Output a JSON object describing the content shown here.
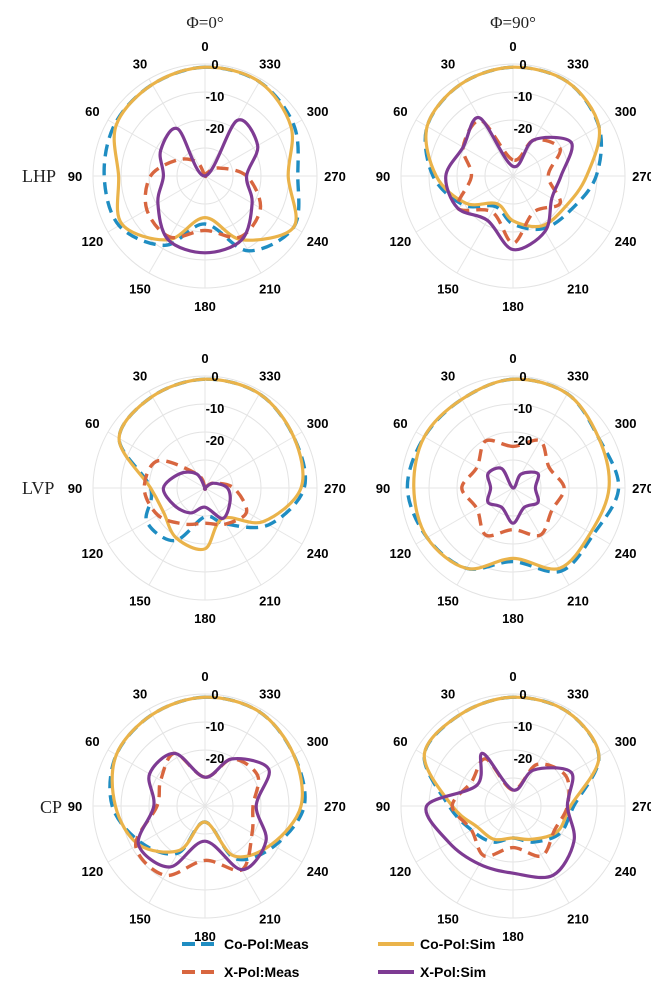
{
  "column_titles": [
    "Φ=0°",
    "Φ=90°"
  ],
  "row_labels": [
    "LHP",
    "LVP",
    "CP"
  ],
  "legend": [
    {
      "label": "Co-Pol:Meas",
      "color": "#1f8dc2",
      "dashed": true
    },
    {
      "label": "Co-Pol:Sim",
      "color": "#eab34a",
      "dashed": false
    },
    {
      "label": "X-Pol:Meas",
      "color": "#d8663f",
      "dashed": true
    },
    {
      "label": "X-Pol:Sim",
      "color": "#7e3b93",
      "dashed": false
    }
  ],
  "chart_data": [
    {
      "type": "polar",
      "row": "LHP",
      "column": "Φ=0°",
      "angle_ticks": [
        "0",
        "30",
        "60",
        "90",
        "120",
        "150",
        "180",
        "210",
        "240",
        "270",
        "300",
        "330"
      ],
      "r_ticks": [
        "0",
        "-10",
        "-20"
      ],
      "r_range_db": [
        -35,
        0
      ],
      "angle_direction": "clockwise-negative",
      "series": [
        {
          "name": "Co-Pol:Meas",
          "angles_deg": [
            0,
            30,
            60,
            90,
            120,
            150,
            180,
            210,
            240,
            270,
            300,
            330,
            360
          ],
          "values_db": [
            -1,
            -2,
            -2.5,
            -3.5,
            -4,
            -10,
            -20,
            -8,
            -3,
            -6,
            -3,
            -1,
            -1
          ]
        },
        {
          "name": "Co-Pol:Sim",
          "angles_deg": [
            0,
            30,
            60,
            90,
            120,
            150,
            180,
            210,
            240,
            270,
            300,
            330,
            360
          ],
          "values_db": [
            -1,
            -2,
            -3,
            -8,
            -5,
            -12,
            -22,
            -12,
            -3,
            -9,
            -4,
            -1,
            -1
          ]
        },
        {
          "name": "X-Pol:Meas",
          "angles_deg": [
            0,
            30,
            60,
            90,
            120,
            150,
            180,
            210,
            240,
            270,
            300,
            330,
            360
          ],
          "values_db": [
            -35,
            -30,
            -25,
            -18,
            -14,
            -13,
            -18,
            -13,
            -15,
            -22,
            -30,
            -34,
            -35
          ]
        },
        {
          "name": "X-Pol:Sim",
          "angles_deg": [
            0,
            30,
            60,
            90,
            120,
            150,
            180,
            210,
            240,
            270,
            300,
            330,
            360
          ],
          "values_db": [
            -35,
            -18,
            -19,
            -22,
            -18,
            -12,
            -11,
            -12,
            -18,
            -22,
            -16,
            -15,
            -35
          ]
        }
      ]
    },
    {
      "type": "polar",
      "row": "LHP",
      "column": "Φ=90°",
      "angle_ticks": [
        "0",
        "30",
        "60",
        "90",
        "120",
        "150",
        "180",
        "210",
        "240",
        "270",
        "300",
        "330"
      ],
      "r_ticks": [
        "0",
        "-10",
        "-20"
      ],
      "r_range_db": [
        -35,
        0
      ],
      "angle_direction": "clockwise-negative",
      "series": [
        {
          "name": "Co-Pol:Meas",
          "angles_deg": [
            0,
            30,
            60,
            90,
            120,
            150,
            180,
            210,
            240,
            270,
            300,
            330,
            360
          ],
          "values_db": [
            -1,
            -2,
            -4,
            -10,
            -17,
            -24,
            -20,
            -16,
            -14,
            -9,
            -4,
            -1,
            -1
          ]
        },
        {
          "name": "Co-Pol:Sim",
          "angles_deg": [
            0,
            30,
            60,
            90,
            120,
            150,
            180,
            210,
            240,
            270,
            300,
            330,
            360
          ],
          "values_db": [
            -1,
            -2,
            -4,
            -11,
            -18,
            -25,
            -21,
            -17,
            -16,
            -12,
            -4,
            -1,
            -1
          ]
        },
        {
          "name": "X-Pol:Meas",
          "angles_deg": [
            0,
            30,
            60,
            90,
            120,
            150,
            180,
            210,
            240,
            270,
            300,
            330,
            360
          ],
          "values_db": [
            -30,
            -15,
            -17,
            -22,
            -15,
            -22,
            -14,
            -22,
            -18,
            -24,
            -18,
            -22,
            -30
          ]
        },
        {
          "name": "X-Pol:Sim",
          "angles_deg": [
            0,
            30,
            60,
            90,
            120,
            150,
            180,
            210,
            240,
            270,
            300,
            330,
            360
          ],
          "values_db": [
            -32,
            -14,
            -17,
            -14,
            -15,
            -19,
            -12,
            -15,
            -21,
            -20,
            -14,
            -22,
            -32
          ]
        }
      ]
    },
    {
      "type": "polar",
      "row": "LVP",
      "column": "Φ=0°",
      "angle_ticks": [
        "0",
        "30",
        "60",
        "90",
        "120",
        "150",
        "180",
        "210",
        "240",
        "270",
        "300",
        "330"
      ],
      "r_ticks": [
        "0",
        "-10",
        "-20"
      ],
      "r_range_db": [
        -35,
        0
      ],
      "angle_direction": "clockwise-negative",
      "series": [
        {
          "name": "Co-Pol:Meas",
          "angles_deg": [
            0,
            30,
            60,
            90,
            120,
            150,
            180,
            210,
            240,
            270,
            300,
            330,
            360
          ],
          "values_db": [
            -1,
            -2,
            -4,
            -18,
            -14,
            -16,
            -26,
            -22,
            -12,
            -4,
            -3,
            -1,
            -1
          ]
        },
        {
          "name": "Co-Pol:Sim",
          "angles_deg": [
            0,
            30,
            60,
            90,
            120,
            150,
            180,
            210,
            240,
            270,
            300,
            330,
            360
          ],
          "values_db": [
            -1,
            -2,
            -4,
            -18,
            -20,
            -17,
            -16,
            -24,
            -14,
            -5,
            -3,
            -1,
            -1
          ]
        },
        {
          "name": "X-Pol:Meas",
          "angles_deg": [
            0,
            30,
            60,
            90,
            120,
            150,
            180,
            210,
            240,
            270,
            300,
            330,
            360
          ],
          "values_db": [
            -35,
            -30,
            -18,
            -16,
            -18,
            -22,
            -24,
            -22,
            -20,
            -26,
            -32,
            -35,
            -35
          ]
        },
        {
          "name": "X-Pol:Sim",
          "angles_deg": [
            0,
            30,
            60,
            90,
            120,
            150,
            180,
            210,
            240,
            270,
            300,
            330,
            360
          ],
          "values_db": [
            -35,
            -30,
            -26,
            -22,
            -24,
            -26,
            -29,
            -24,
            -26,
            -28,
            -32,
            -35,
            -35
          ]
        }
      ]
    },
    {
      "type": "polar",
      "row": "LVP",
      "column": "Φ=90°",
      "angle_ticks": [
        "0",
        "30",
        "60",
        "90",
        "120",
        "150",
        "180",
        "210",
        "240",
        "270",
        "300",
        "330"
      ],
      "r_ticks": [
        "0",
        "-10",
        "-20"
      ],
      "r_range_db": [
        -35,
        0
      ],
      "angle_direction": "clockwise-negative",
      "series": [
        {
          "name": "Co-Pol:Meas",
          "angles_deg": [
            0,
            30,
            60,
            90,
            120,
            150,
            180,
            210,
            240,
            270,
            300,
            330,
            360
          ],
          "values_db": [
            -1,
            -3,
            -3,
            -2,
            -4,
            -6,
            -12,
            -5,
            -6,
            -2,
            -4,
            -1,
            -1
          ]
        },
        {
          "name": "Co-Pol:Sim",
          "angles_deg": [
            0,
            30,
            60,
            90,
            120,
            150,
            180,
            210,
            240,
            270,
            300,
            330,
            360
          ],
          "values_db": [
            -1,
            -3,
            -3,
            -4,
            -4,
            -6,
            -13,
            -6,
            -7,
            -5,
            -4,
            -1,
            -1
          ]
        },
        {
          "name": "X-Pol:Meas",
          "angles_deg": [
            0,
            30,
            60,
            90,
            120,
            150,
            180,
            210,
            240,
            270,
            300,
            330,
            360
          ],
          "values_db": [
            -22,
            -18,
            -22,
            -19,
            -22,
            -18,
            -22,
            -18,
            -21,
            -19,
            -22,
            -18,
            -22
          ]
        },
        {
          "name": "X-Pol:Sim",
          "angles_deg": [
            0,
            30,
            60,
            90,
            120,
            150,
            180,
            210,
            240,
            270,
            300,
            330,
            360
          ],
          "values_db": [
            -35,
            -28,
            -26,
            -28,
            -26,
            -28,
            -24,
            -28,
            -26,
            -28,
            -26,
            -30,
            -35
          ]
        }
      ]
    },
    {
      "type": "polar",
      "row": "CP",
      "column": "Φ=0°",
      "angle_ticks": [
        "0",
        "30",
        "60",
        "90",
        "120",
        "150",
        "180",
        "210",
        "240",
        "270",
        "300",
        "330"
      ],
      "r_ticks": [
        "0",
        "-10",
        "-20"
      ],
      "r_range_db": [
        -35,
        0
      ],
      "angle_direction": "clockwise-negative",
      "series": [
        {
          "name": "Co-Pol:Meas",
          "angles_deg": [
            0,
            30,
            60,
            90,
            120,
            150,
            180,
            210,
            240,
            270,
            300,
            330,
            360
          ],
          "values_db": [
            -1,
            -2,
            -3,
            -6,
            -12,
            -18,
            -30,
            -16,
            -10,
            -4,
            -3,
            -1,
            -1
          ]
        },
        {
          "name": "Co-Pol:Sim",
          "angles_deg": [
            0,
            30,
            60,
            90,
            120,
            150,
            180,
            210,
            240,
            270,
            300,
            330,
            360
          ],
          "values_db": [
            -1,
            -2,
            -3,
            -7,
            -11,
            -19,
            -30,
            -17,
            -11,
            -5,
            -3,
            -1,
            -1
          ]
        },
        {
          "name": "X-Pol:Meas",
          "angles_deg": [
            0,
            30,
            60,
            90,
            120,
            150,
            180,
            210,
            240,
            270,
            300,
            330,
            360
          ],
          "values_db": [
            -26,
            -16,
            -19,
            -20,
            -10,
            -10,
            -18,
            -12,
            -18,
            -20,
            -16,
            -18,
            -26
          ]
        },
        {
          "name": "X-Pol:Sim",
          "angles_deg": [
            0,
            30,
            60,
            90,
            120,
            150,
            180,
            210,
            240,
            270,
            300,
            330,
            360
          ],
          "values_db": [
            -26,
            -16,
            -15,
            -19,
            -11,
            -13,
            -24,
            -12,
            -13,
            -19,
            -12,
            -18,
            -26
          ]
        }
      ]
    },
    {
      "type": "polar",
      "row": "CP",
      "column": "Φ=90°",
      "angle_ticks": [
        "0",
        "30",
        "60",
        "90",
        "120",
        "150",
        "180",
        "210",
        "240",
        "270",
        "300",
        "330"
      ],
      "r_ticks": [
        "0",
        "-10",
        "-20"
      ],
      "r_range_db": [
        -35,
        0
      ],
      "angle_direction": "clockwise-negative",
      "series": [
        {
          "name": "Co-Pol:Meas",
          "angles_deg": [
            0,
            30,
            60,
            90,
            120,
            150,
            180,
            210,
            240,
            270,
            300,
            330,
            360
          ],
          "values_db": [
            -1,
            -2,
            -3,
            -15,
            -20,
            -22,
            -25,
            -22,
            -18,
            -16,
            -4,
            -1,
            -1
          ]
        },
        {
          "name": "Co-Pol:Sim",
          "angles_deg": [
            0,
            30,
            60,
            90,
            120,
            150,
            180,
            210,
            240,
            270,
            300,
            330,
            360
          ],
          "values_db": [
            -1,
            -2,
            -3,
            -16,
            -22,
            -23,
            -25,
            -23,
            -19,
            -17,
            -4,
            -1,
            -1
          ]
        },
        {
          "name": "X-Pol:Meas",
          "angles_deg": [
            0,
            30,
            60,
            90,
            120,
            150,
            180,
            210,
            240,
            270,
            300,
            330,
            360
          ],
          "values_db": [
            -30,
            -18,
            -20,
            -16,
            -20,
            -17,
            -22,
            -17,
            -20,
            -18,
            -16,
            -20,
            -30
          ]
        },
        {
          "name": "X-Pol:Sim",
          "angles_deg": [
            0,
            30,
            60,
            90,
            120,
            150,
            180,
            210,
            240,
            270,
            300,
            330,
            360
          ],
          "values_db": [
            -30,
            -16,
            -22,
            -8,
            -12,
            -14,
            -14,
            -10,
            -13,
            -18,
            -14,
            -22,
            -30
          ]
        }
      ]
    }
  ]
}
